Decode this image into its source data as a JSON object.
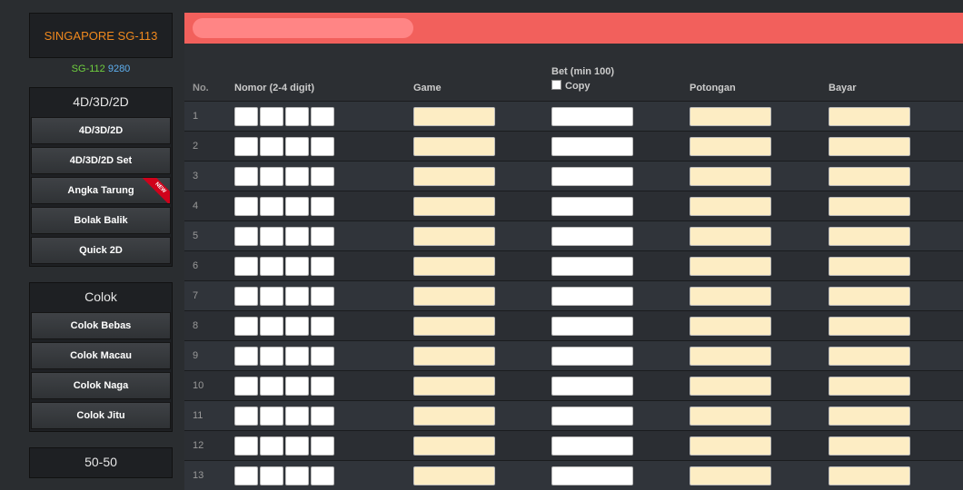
{
  "sidebar": {
    "market": "SINGAPORE SG-113",
    "prev_code": "SG-112",
    "prev_number": "9280",
    "groups": [
      {
        "title": "4D/3D/2D",
        "items": [
          "4D/3D/2D",
          "4D/3D/2D Set",
          "Angka Tarung",
          "Bolak Balik",
          "Quick 2D"
        ]
      },
      {
        "title": "Colok",
        "items": [
          "Colok Bebas",
          "Colok Macau",
          "Colok Naga",
          "Colok Jitu"
        ]
      },
      {
        "title": "50-50",
        "items": []
      }
    ],
    "new_badge": "NEW"
  },
  "table": {
    "headers": {
      "no": "No.",
      "nomor": "Nomor (2-4 digit)",
      "game": "Game",
      "bet": "Bet (min 100)",
      "copy": "Copy",
      "potongan": "Potongan",
      "bayar": "Bayar"
    },
    "rows": [
      "1",
      "2",
      "3",
      "4",
      "5",
      "6",
      "7",
      "8",
      "9",
      "10",
      "11",
      "12",
      "13"
    ]
  },
  "colors": {
    "accent": "#f2605c",
    "market_text": "#f0891e",
    "input_yellow": "#fdedc4"
  }
}
